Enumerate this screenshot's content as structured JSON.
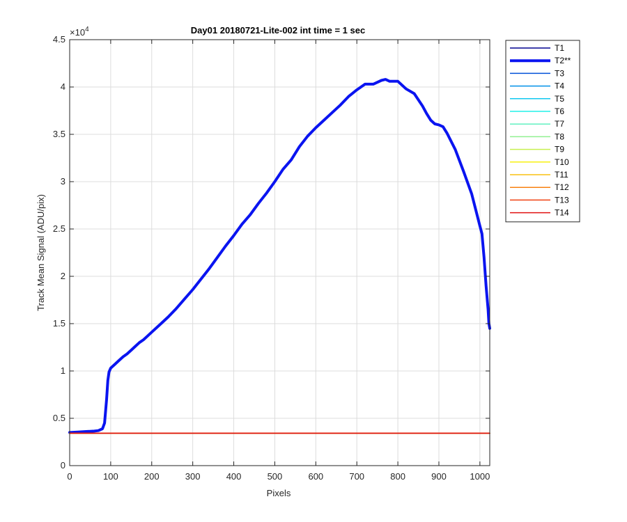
{
  "chart_data": {
    "type": "line",
    "title": "Day01 20180721-Lite-002 int time = 1 sec",
    "xlabel": "Pixels",
    "ylabel": "Track Mean Signal (ADU/pix)",
    "xlim": [
      0,
      1024
    ],
    "ylim": [
      0,
      45000
    ],
    "x_ticks": [
      0,
      100,
      200,
      300,
      400,
      500,
      600,
      700,
      800,
      900,
      1000
    ],
    "x_tick_labels": [
      "0",
      "100",
      "200",
      "300",
      "400",
      "500",
      "600",
      "700",
      "800",
      "900",
      "1000"
    ],
    "y_ticks": [
      0,
      5000,
      10000,
      15000,
      20000,
      25000,
      30000,
      35000,
      40000,
      45000
    ],
    "y_tick_labels": [
      "0",
      "0.5",
      "1",
      "1.5",
      "2",
      "2.5",
      "3",
      "3.5",
      "4",
      "4.5"
    ],
    "y_exponent_label": "×10",
    "y_exponent_power": "4",
    "grid": true,
    "legend_position": "outside-right",
    "series": [
      {
        "name": "T1",
        "color": "#00008f",
        "width": 1.5,
        "x": [
          0,
          1024
        ],
        "y": [
          3420,
          3420
        ]
      },
      {
        "name": "T2**",
        "color": "#0a14f0",
        "width": 4,
        "x": [
          0,
          20,
          40,
          60,
          70,
          80,
          85,
          90,
          93,
          96,
          100,
          110,
          120,
          130,
          140,
          150,
          160,
          170,
          180,
          190,
          200,
          220,
          240,
          260,
          280,
          300,
          320,
          340,
          360,
          380,
          400,
          420,
          440,
          460,
          480,
          500,
          520,
          540,
          560,
          580,
          600,
          620,
          640,
          660,
          680,
          700,
          720,
          740,
          760,
          770,
          780,
          800,
          820,
          840,
          860,
          870,
          880,
          890,
          900,
          910,
          920,
          940,
          960,
          980,
          1000,
          1005,
          1010,
          1015,
          1020,
          1022,
          1024
        ],
        "y": [
          3500,
          3550,
          3600,
          3650,
          3700,
          3900,
          4500,
          7000,
          9000,
          9900,
          10300,
          10700,
          11100,
          11500,
          11800,
          12200,
          12600,
          13000,
          13300,
          13700,
          14100,
          14900,
          15700,
          16600,
          17600,
          18600,
          19700,
          20800,
          22000,
          23200,
          24300,
          25500,
          26500,
          27700,
          28800,
          30000,
          31300,
          32300,
          33700,
          34800,
          35700,
          36500,
          37300,
          38100,
          39000,
          39700,
          40300,
          40300,
          40700,
          40800,
          40600,
          40600,
          39800,
          39300,
          38000,
          37200,
          36500,
          36100,
          36000,
          35800,
          35100,
          33400,
          31100,
          28700,
          25300,
          24500,
          22000,
          19000,
          16500,
          15000,
          14500
        ]
      },
      {
        "name": "T3",
        "color": "#0050d8",
        "width": 1.5,
        "x": [
          0,
          1024
        ],
        "y": [
          3430,
          3430
        ]
      },
      {
        "name": "T4",
        "color": "#0090e8",
        "width": 1.5,
        "x": [
          0,
          1024
        ],
        "y": [
          3425,
          3425
        ]
      },
      {
        "name": "T5",
        "color": "#10c8f0",
        "width": 1.5,
        "x": [
          0,
          1024
        ],
        "y": [
          3430,
          3430
        ]
      },
      {
        "name": "T6",
        "color": "#20f0e8",
        "width": 1.5,
        "x": [
          0,
          1024
        ],
        "y": [
          3420,
          3420
        ]
      },
      {
        "name": "T7",
        "color": "#60f0c0",
        "width": 1.5,
        "x": [
          0,
          1024
        ],
        "y": [
          3425,
          3425
        ]
      },
      {
        "name": "T8",
        "color": "#90f090",
        "width": 1.5,
        "x": [
          0,
          1024
        ],
        "y": [
          3430,
          3430
        ]
      },
      {
        "name": "T9",
        "color": "#c8f050",
        "width": 1.5,
        "x": [
          0,
          1024
        ],
        "y": [
          3420,
          3420
        ]
      },
      {
        "name": "T10",
        "color": "#f8f010",
        "width": 1.5,
        "x": [
          0,
          1024
        ],
        "y": [
          3425,
          3425
        ]
      },
      {
        "name": "T11",
        "color": "#f8c010",
        "width": 1.5,
        "x": [
          0,
          1024
        ],
        "y": [
          3430,
          3430
        ]
      },
      {
        "name": "T12",
        "color": "#f88010",
        "width": 1.5,
        "x": [
          0,
          1024
        ],
        "y": [
          3425,
          3425
        ]
      },
      {
        "name": "T13",
        "color": "#f04010",
        "width": 1.5,
        "x": [
          0,
          1024
        ],
        "y": [
          3430,
          3430
        ]
      },
      {
        "name": "T14",
        "color": "#e01010",
        "width": 1.5,
        "x": [
          0,
          1024
        ],
        "y": [
          3420,
          3420
        ]
      }
    ]
  }
}
